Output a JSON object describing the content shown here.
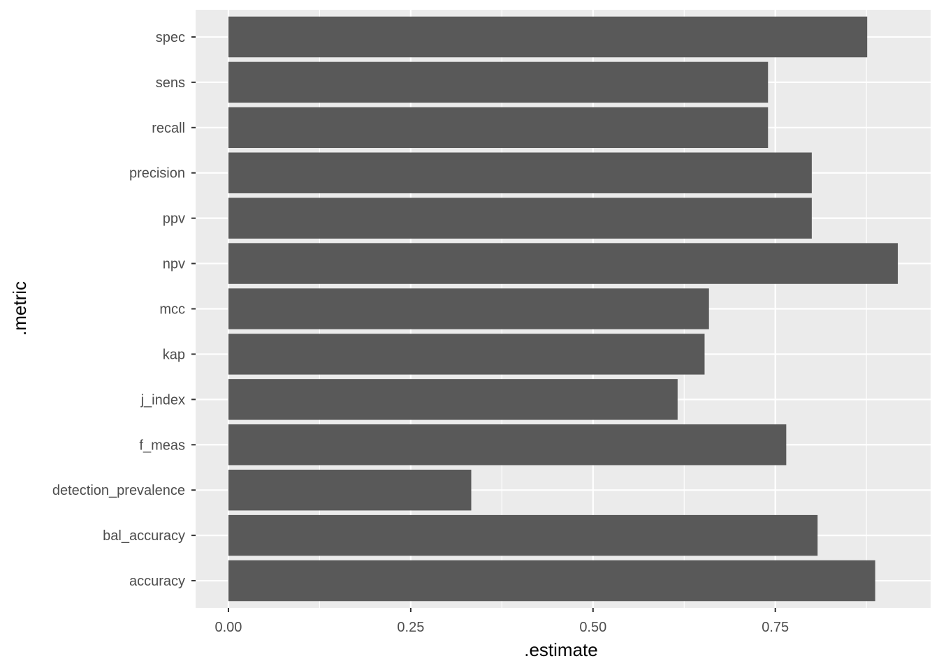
{
  "chart_data": {
    "type": "bar",
    "orientation": "horizontal",
    "title": "",
    "xlabel": ".estimate",
    "ylabel": ".metric",
    "categories": [
      "accuracy",
      "bal_accuracy",
      "detection_prevalence",
      "f_meas",
      "j_index",
      "kap",
      "mcc",
      "npv",
      "ppv",
      "precision",
      "recall",
      "sens",
      "spec"
    ],
    "values": [
      0.887,
      0.808,
      0.333,
      0.765,
      0.616,
      0.653,
      0.659,
      0.918,
      0.8,
      0.8,
      0.74,
      0.74,
      0.876
    ],
    "xlim": [
      -0.045,
      0.963
    ],
    "xticks": [
      0.0,
      0.25,
      0.5,
      0.75
    ],
    "xtick_labels": [
      "0.00",
      "0.25",
      "0.50",
      "0.75"
    ],
    "grid": true,
    "legend": "none",
    "colors": {
      "bar": "#595959",
      "panel_background": "#ebebeb",
      "grid_major": "#ffffff",
      "tick_text": "#4d4d4d",
      "title_text": "#000000"
    }
  }
}
